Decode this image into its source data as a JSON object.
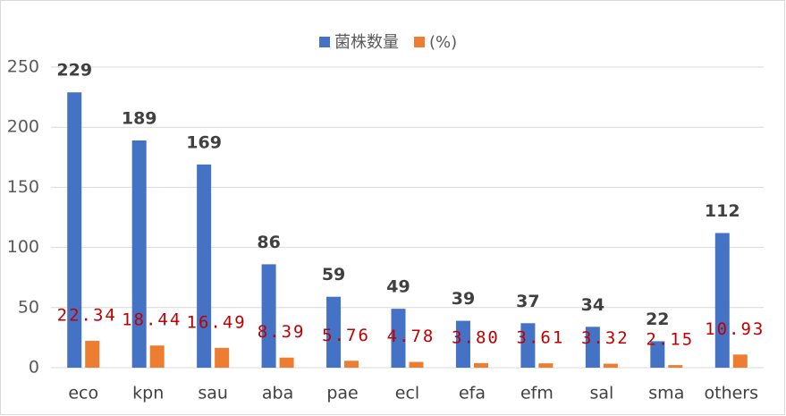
{
  "chart_data": {
    "type": "bar",
    "categories": [
      "eco",
      "kpn",
      "sau",
      "aba",
      "pae",
      "ecl",
      "efa",
      "efm",
      "sal",
      "sma",
      "others"
    ],
    "series": [
      {
        "name": "菌株数量",
        "color": "#4472c4",
        "values": [
          229,
          189,
          169,
          86,
          59,
          49,
          39,
          37,
          34,
          22,
          112
        ]
      },
      {
        "name": "(%)",
        "color": "#ed7d31",
        "values": [
          22.34,
          18.44,
          16.49,
          8.39,
          5.76,
          4.78,
          3.8,
          3.61,
          3.32,
          2.15,
          10.93
        ],
        "value_labels": [
          "22.34",
          "18.44",
          "16.49",
          "8.39",
          "5.76",
          "4.78",
          "3.80",
          "3.61",
          "3.32",
          "2.15",
          "10.93"
        ]
      }
    ],
    "ylim": [
      0,
      250
    ],
    "yticks": [
      0,
      50,
      100,
      150,
      200,
      250
    ],
    "grid": true,
    "legend": "top"
  }
}
